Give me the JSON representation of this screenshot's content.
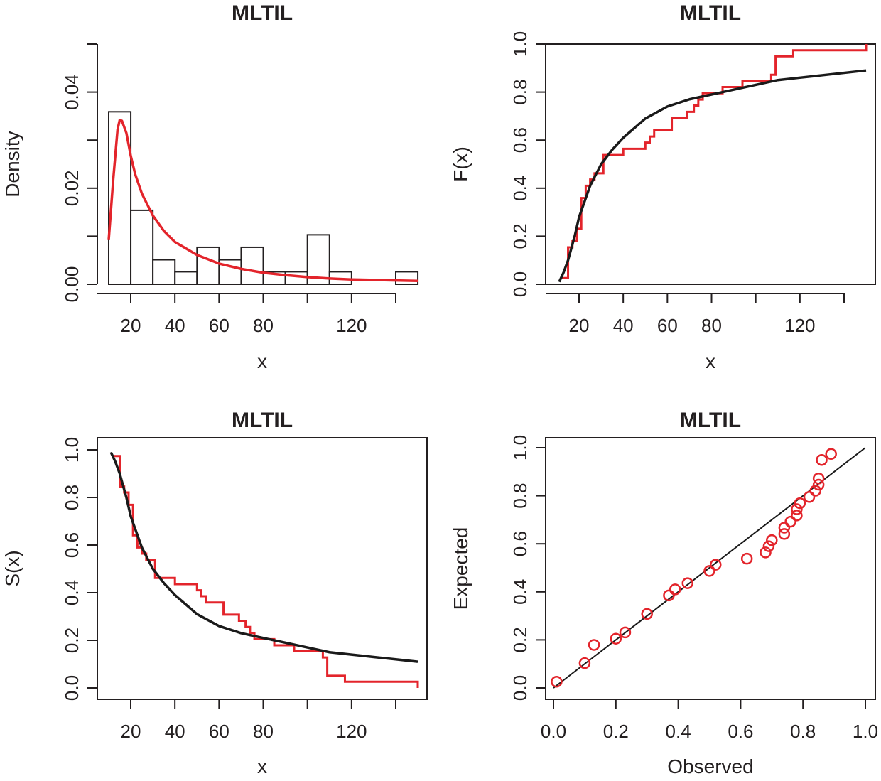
{
  "colors": {
    "red": "#e3242b",
    "black": "#1a1a1a",
    "axis": "#231f20"
  },
  "chart_data": [
    {
      "type": "histogram",
      "title": "MLTIL",
      "xlabel": "x",
      "ylabel": "Density",
      "xticks": [
        20,
        40,
        60,
        80,
        120
      ],
      "yticks": [
        0.0,
        0.02,
        0.04
      ],
      "ytick_labels": [
        "0.00",
        "0.02",
        "0.04"
      ],
      "xlim": [
        9,
        155
      ],
      "ylim": [
        0,
        0.05
      ],
      "bins": [
        [
          10,
          20
        ],
        [
          20,
          30
        ],
        [
          30,
          40
        ],
        [
          40,
          50
        ],
        [
          50,
          60
        ],
        [
          60,
          70
        ],
        [
          70,
          80
        ],
        [
          80,
          90
        ],
        [
          90,
          100
        ],
        [
          100,
          110
        ],
        [
          110,
          120
        ],
        [
          120,
          130
        ],
        [
          130,
          140
        ],
        [
          140,
          150
        ]
      ],
      "densities": [
        0.0359,
        0.0154,
        0.0051,
        0.0026,
        0.0077,
        0.0051,
        0.0077,
        0.0026,
        0.0026,
        0.0103,
        0.0026,
        0,
        0,
        0.0026
      ],
      "fitted_pdf": {
        "name": "MLTIL density",
        "x": [
          10,
          12,
          14,
          15,
          16,
          18,
          20,
          22,
          25,
          30,
          35,
          40,
          50,
          60,
          70,
          80,
          90,
          100,
          110,
          120,
          130,
          140,
          150
        ],
        "y": [
          0.0092,
          0.0215,
          0.0322,
          0.0342,
          0.034,
          0.0315,
          0.0267,
          0.0229,
          0.0189,
          0.0143,
          0.0111,
          0.0088,
          0.0061,
          0.0043,
          0.0032,
          0.0024,
          0.0019,
          0.0015,
          0.0012,
          0.001,
          0.0009,
          0.0008,
          0.0007
        ]
      }
    },
    {
      "type": "line",
      "title": "MLTIL",
      "xlabel": "x",
      "ylabel": "F(x)",
      "xticks": [
        20,
        40,
        60,
        80,
        120
      ],
      "yticks": [
        0,
        0.2,
        0.4,
        0.6,
        0.8,
        1.0
      ],
      "ytick_labels": [
        "0.0",
        "0.2",
        "0.4",
        "0.6",
        "0.8",
        "1.0"
      ],
      "xlim": [
        9,
        155
      ],
      "ylim": [
        0,
        1
      ],
      "series": [
        {
          "name": "Empirical CDF",
          "style": "step",
          "x": [
            12,
            15,
            17,
            19,
            21,
            23,
            25,
            27,
            31,
            40,
            50,
            52,
            54,
            62,
            69,
            72,
            74,
            76,
            85,
            94,
            107,
            109,
            117,
            150
          ],
          "y": [
            0.026,
            0.154,
            0.179,
            0.231,
            0.359,
            0.41,
            0.436,
            0.462,
            0.538,
            0.564,
            0.59,
            0.615,
            0.641,
            0.692,
            0.718,
            0.744,
            0.769,
            0.795,
            0.821,
            0.846,
            0.872,
            0.949,
            0.974,
            1.0
          ]
        },
        {
          "name": "Fitted CDF",
          "style": "line",
          "x": [
            11,
            13,
            15,
            18,
            20,
            25,
            30,
            35,
            40,
            50,
            60,
            70,
            80,
            90,
            100,
            110,
            120,
            130,
            140,
            150
          ],
          "y": [
            0.01,
            0.05,
            0.1,
            0.2,
            0.28,
            0.41,
            0.5,
            0.56,
            0.61,
            0.69,
            0.74,
            0.77,
            0.79,
            0.81,
            0.83,
            0.85,
            0.86,
            0.87,
            0.88,
            0.89
          ]
        }
      ]
    },
    {
      "type": "line",
      "title": "MLTIL",
      "xlabel": "x",
      "ylabel": "S(x)",
      "xticks": [
        20,
        40,
        60,
        80,
        120
      ],
      "yticks": [
        0,
        0.2,
        0.4,
        0.6,
        0.8,
        1.0
      ],
      "ytick_labels": [
        "0.0",
        "0.2",
        "0.4",
        "0.6",
        "0.8",
        "1.0"
      ],
      "xlim": [
        9,
        155
      ],
      "ylim": [
        0,
        1
      ],
      "series": [
        {
          "name": "Empirical survival",
          "style": "step",
          "x": [
            12,
            15,
            17,
            19,
            21,
            23,
            25,
            27,
            31,
            40,
            50,
            52,
            54,
            62,
            69,
            72,
            74,
            76,
            85,
            94,
            107,
            109,
            117,
            150
          ],
          "y": [
            0.974,
            0.846,
            0.821,
            0.769,
            0.641,
            0.59,
            0.564,
            0.538,
            0.462,
            0.436,
            0.41,
            0.385,
            0.359,
            0.308,
            0.282,
            0.256,
            0.231,
            0.205,
            0.179,
            0.154,
            0.128,
            0.051,
            0.026,
            0.0
          ]
        },
        {
          "name": "Fitted survival",
          "style": "line",
          "x": [
            11,
            13,
            15,
            18,
            20,
            25,
            30,
            35,
            40,
            50,
            60,
            70,
            80,
            90,
            100,
            110,
            120,
            130,
            140,
            150
          ],
          "y": [
            0.99,
            0.95,
            0.9,
            0.8,
            0.72,
            0.59,
            0.5,
            0.44,
            0.39,
            0.31,
            0.26,
            0.23,
            0.21,
            0.19,
            0.17,
            0.15,
            0.14,
            0.13,
            0.12,
            0.11
          ]
        }
      ]
    },
    {
      "type": "scatter",
      "title": "MLTIL",
      "xlabel": "Observed",
      "ylabel": "Expected",
      "xticks": [
        0,
        0.2,
        0.4,
        0.6,
        0.8,
        1.0
      ],
      "xtick_labels": [
        "0.0",
        "0.2",
        "0.4",
        "0.6",
        "0.8",
        "1.0"
      ],
      "yticks": [
        0,
        0.2,
        0.4,
        0.6,
        0.8,
        1.0
      ],
      "ytick_labels": [
        "0.0",
        "0.2",
        "0.4",
        "0.6",
        "0.8",
        "1.0"
      ],
      "xlim": [
        0,
        1
      ],
      "ylim": [
        0,
        1
      ],
      "reference_line": {
        "x": [
          0,
          1
        ],
        "y": [
          0,
          1
        ]
      },
      "points": {
        "x": [
          0.01,
          0.1,
          0.13,
          0.2,
          0.23,
          0.3,
          0.37,
          0.39,
          0.43,
          0.5,
          0.52,
          0.62,
          0.68,
          0.69,
          0.7,
          0.74,
          0.74,
          0.76,
          0.78,
          0.78,
          0.79,
          0.82,
          0.84,
          0.85,
          0.85,
          0.86,
          0.89
        ],
        "y": [
          0.026,
          0.103,
          0.179,
          0.205,
          0.231,
          0.308,
          0.385,
          0.41,
          0.436,
          0.487,
          0.513,
          0.538,
          0.564,
          0.59,
          0.615,
          0.641,
          0.667,
          0.692,
          0.718,
          0.744,
          0.769,
          0.795,
          0.821,
          0.846,
          0.872,
          0.949,
          0.974
        ]
      }
    }
  ]
}
